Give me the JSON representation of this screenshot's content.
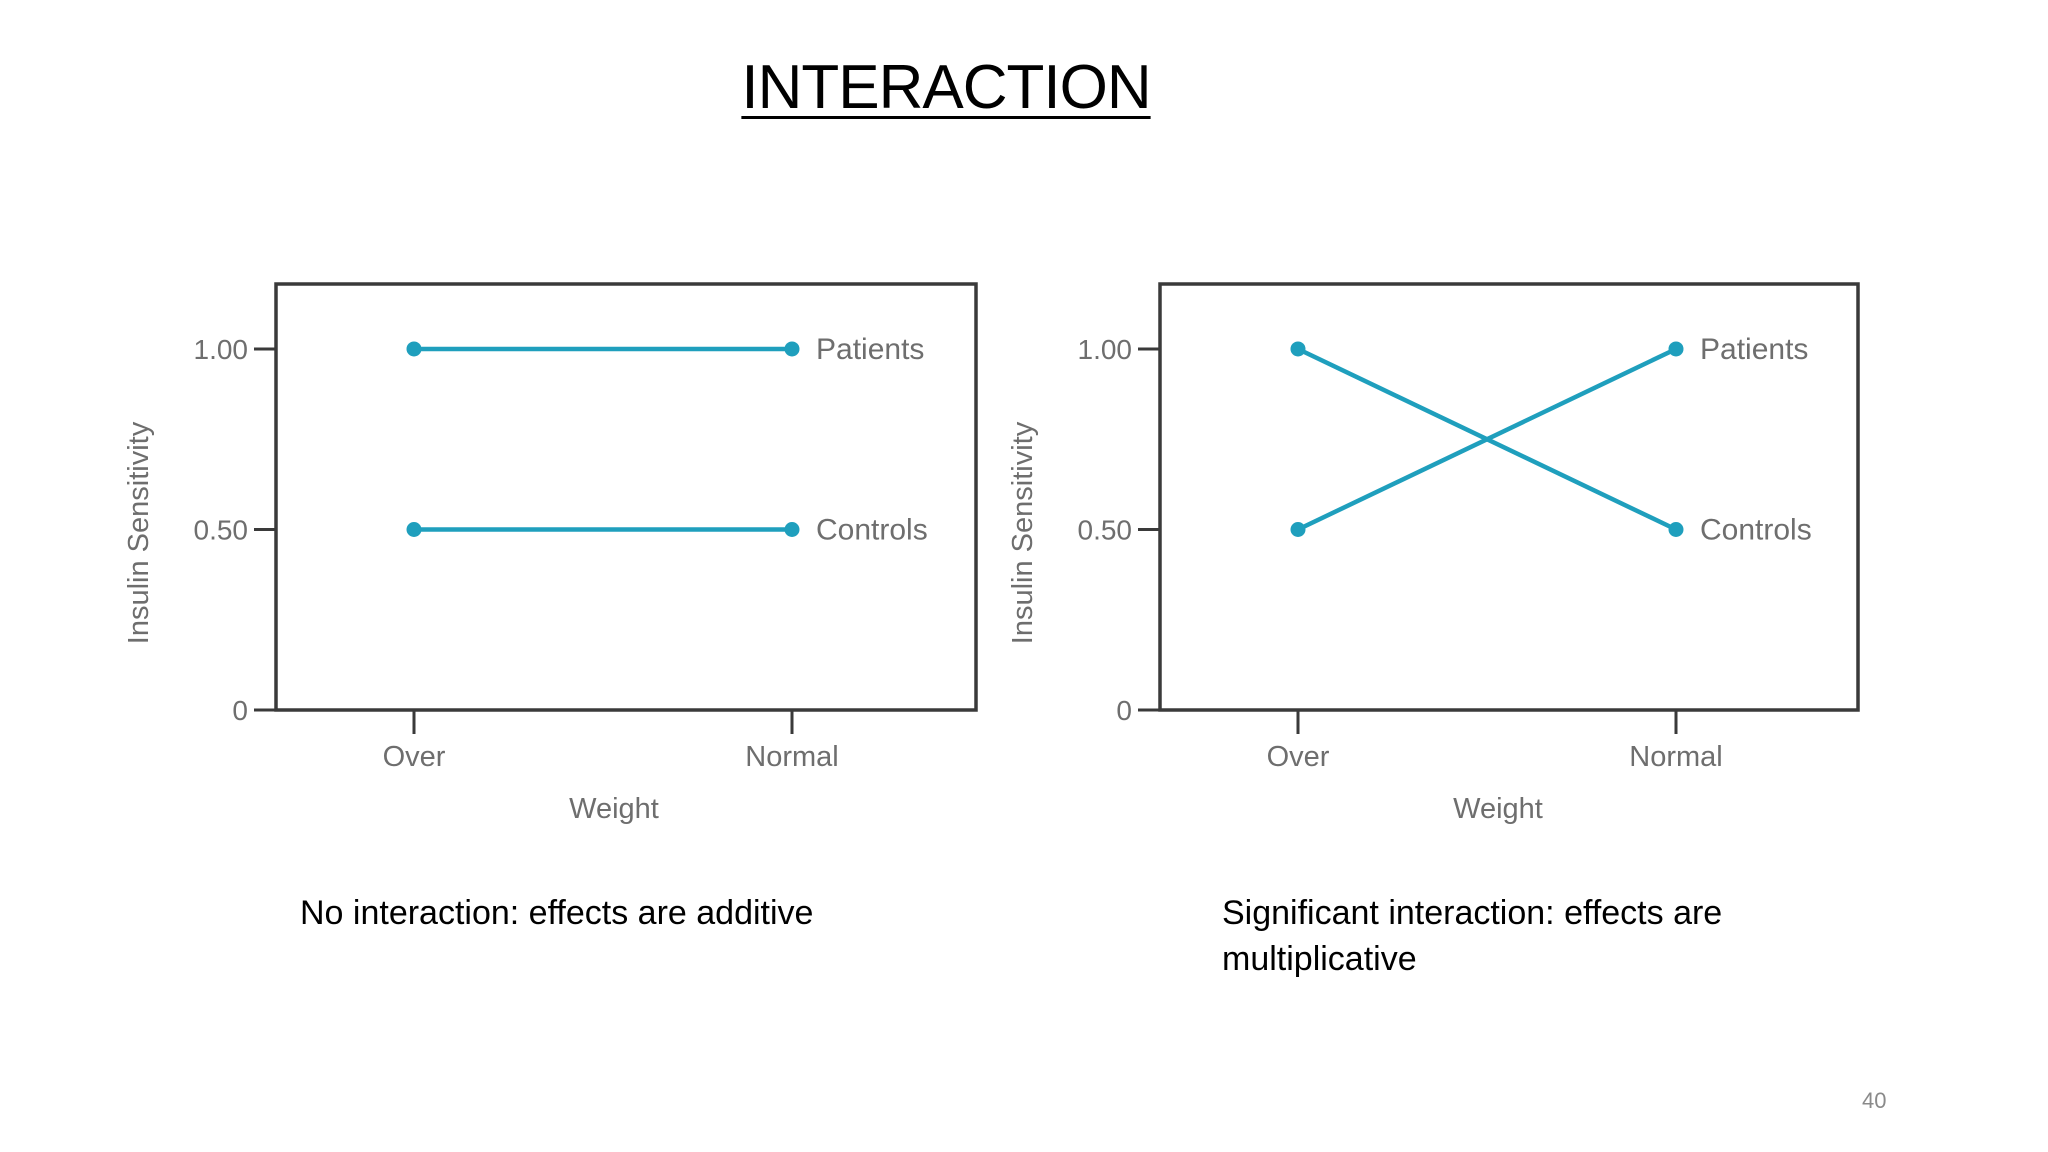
{
  "title": "INTERACTION",
  "page_number": "40",
  "captions": {
    "left": "No interaction: effects are additive",
    "right": "Significant interaction: effects are multiplicative"
  },
  "colors": {
    "series": "#1f9fbd",
    "frame": "#3a3a3a",
    "axis_text": "#6e6e6e"
  },
  "chart_data": [
    {
      "type": "line",
      "categories": [
        "Over",
        "Normal"
      ],
      "series": [
        {
          "name": "Patients",
          "values": [
            1.0,
            1.0
          ]
        },
        {
          "name": "Controls",
          "values": [
            0.5,
            0.5
          ]
        }
      ],
      "xlabel": "Weight",
      "ylabel": "Insulin Sensitivity",
      "yticks": [
        "0",
        "0.50",
        "1.00"
      ],
      "ylim": [
        0,
        1.18
      ],
      "grid": false
    },
    {
      "type": "line",
      "categories": [
        "Over",
        "Normal"
      ],
      "series": [
        {
          "name": "Patients",
          "values": [
            0.5,
            1.0
          ]
        },
        {
          "name": "Controls",
          "values": [
            1.0,
            0.5
          ]
        }
      ],
      "xlabel": "Weight",
      "ylabel": "Insulin Sensitivity",
      "yticks": [
        "0",
        "0.50",
        "1.00"
      ],
      "ylim": [
        0,
        1.18
      ],
      "grid": false
    }
  ]
}
